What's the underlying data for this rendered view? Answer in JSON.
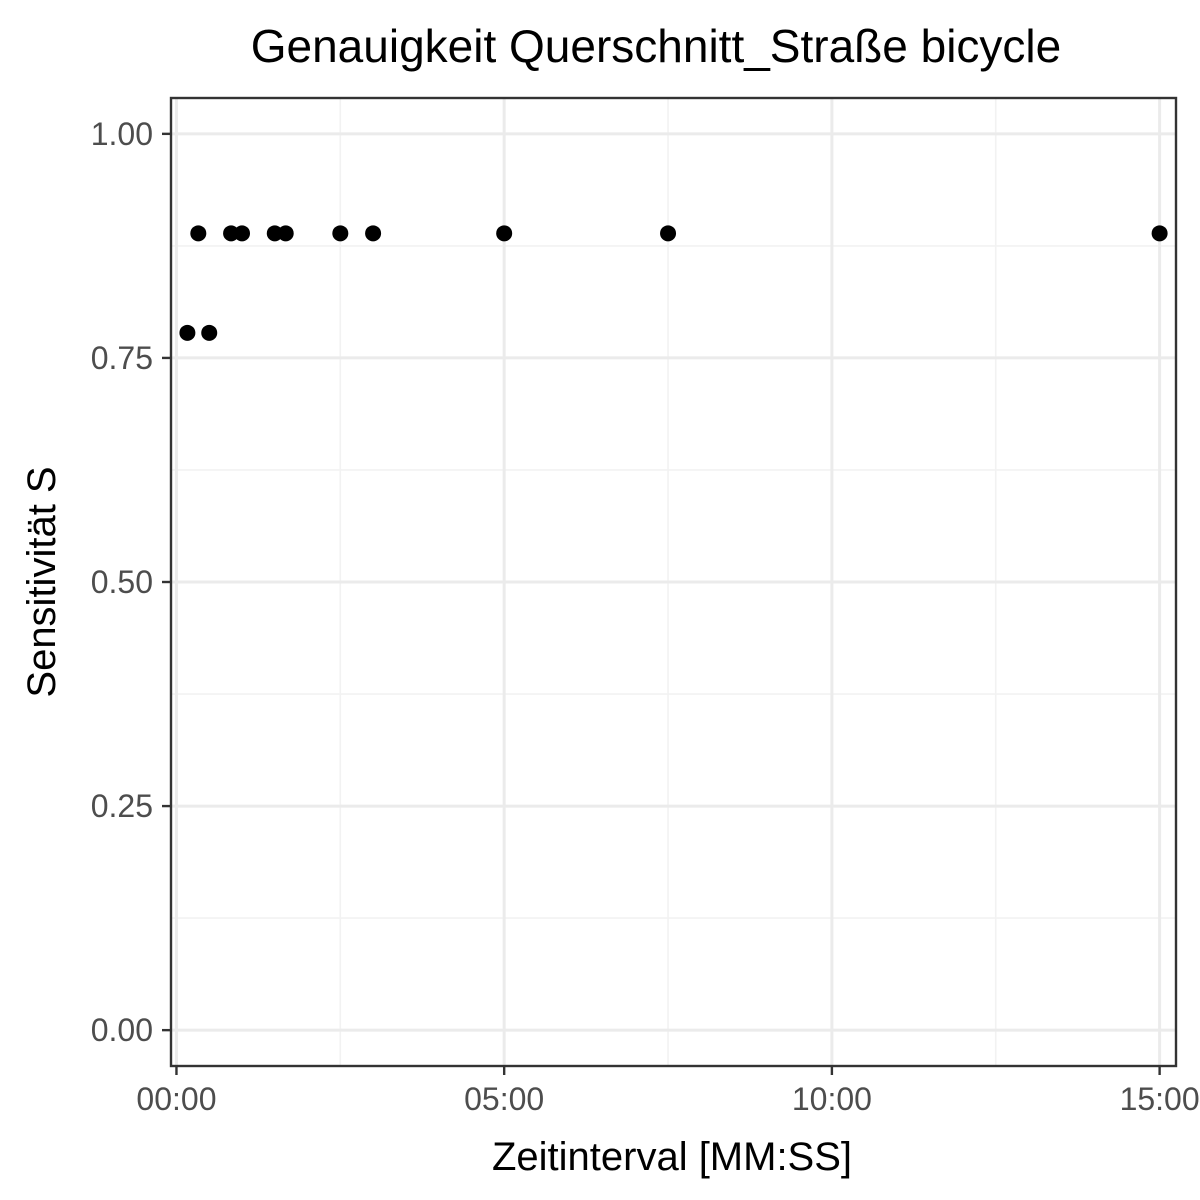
{
  "chart_data": {
    "type": "scatter",
    "title": "Genauigkeit Querschnitt_Straße bicycle",
    "xlabel": "Zeitinterval [MM:SS]",
    "ylabel": "Sensitivität S",
    "x_unit": "MM:SS",
    "xlim": [
      "-00:05",
      "15:15"
    ],
    "ylim": [
      -0.04,
      1.04
    ],
    "x_ticks": [
      "00:00",
      "05:00",
      "10:00",
      "15:00"
    ],
    "y_ticks": [
      "0.00",
      "0.25",
      "0.50",
      "0.75",
      "1.00"
    ],
    "grid": true,
    "legend": "none",
    "point_color": "#000000",
    "series": [
      {
        "points": [
          {
            "x": "00:10",
            "y": 0.778
          },
          {
            "x": "00:20",
            "y": 0.889
          },
          {
            "x": "00:30",
            "y": 0.778
          },
          {
            "x": "00:50",
            "y": 0.889
          },
          {
            "x": "01:00",
            "y": 0.889
          },
          {
            "x": "01:30",
            "y": 0.889
          },
          {
            "x": "01:40",
            "y": 0.889
          },
          {
            "x": "02:30",
            "y": 0.889
          },
          {
            "x": "03:00",
            "y": 0.889
          },
          {
            "x": "05:00",
            "y": 0.889
          },
          {
            "x": "07:30",
            "y": 0.889
          },
          {
            "x": "15:00",
            "y": 0.889
          }
        ]
      }
    ]
  }
}
